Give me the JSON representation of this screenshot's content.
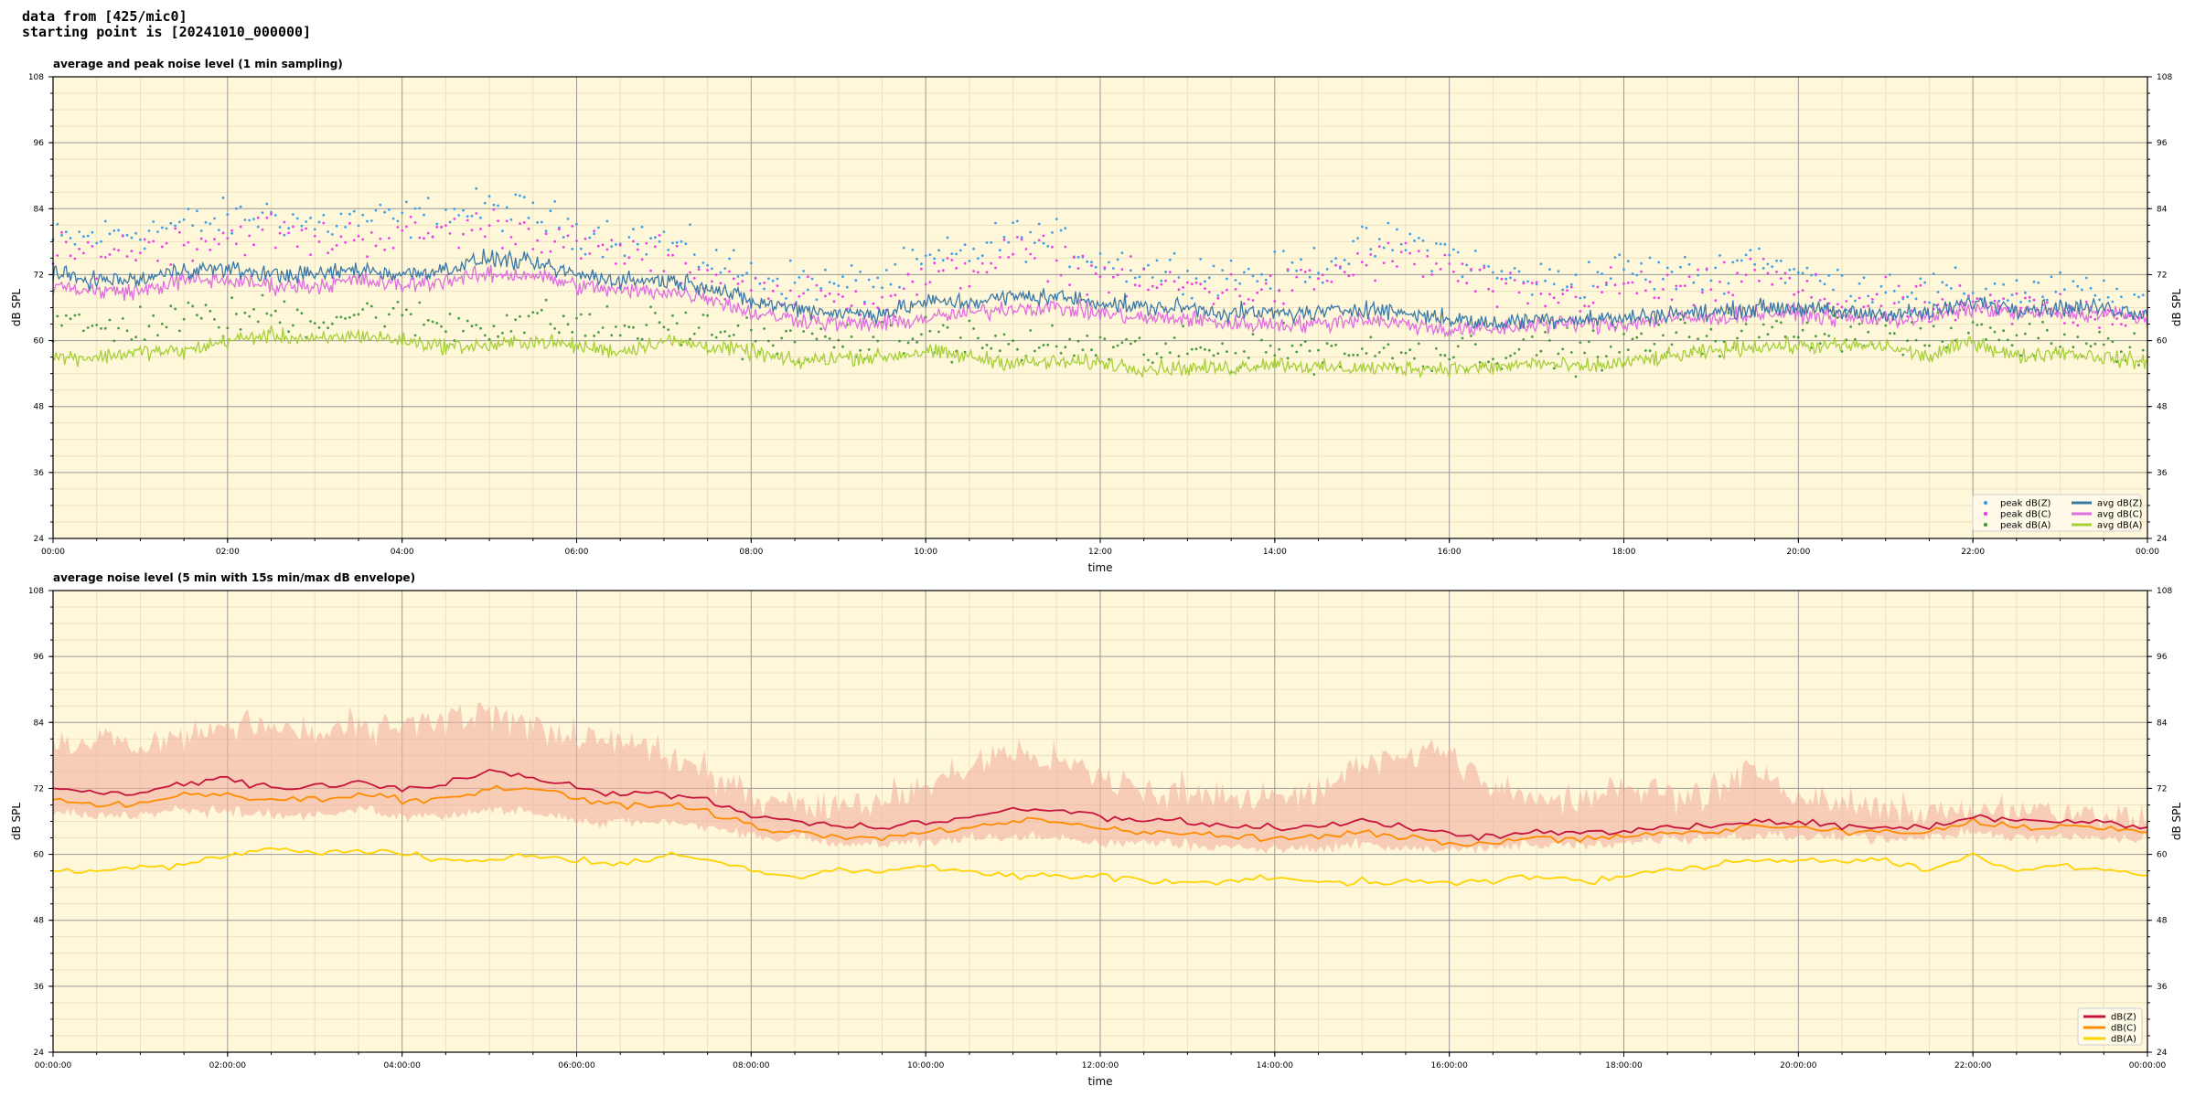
{
  "header": {
    "line1": "data from [425/mic0]",
    "line2": "starting point is [20241010_000000]"
  },
  "colors": {
    "background": "#fff7d9",
    "grid_major": "#9a9a9a",
    "grid_minor": "#ece2c0",
    "peak_z": "#3ea0e6",
    "peak_c": "#ee40e8",
    "peak_a": "#4a9a42",
    "avg_z": "#3a78a8",
    "avg_c": "#e06ee0",
    "avg_a": "#a6cf3a",
    "env_fill": "#f2b0a0",
    "lvl_z": "#c8143c",
    "lvl_c": "#ff8c00",
    "lvl_a": "#ffd200"
  },
  "chart_data": [
    {
      "type": "line",
      "title": "average and peak noise level (1 min sampling)",
      "xlabel": "time",
      "ylabel": "dB SPL",
      "ylim": [
        24,
        108
      ],
      "yticks": [
        "108",
        "96",
        "84",
        "72",
        "60",
        "48",
        "36",
        "24"
      ],
      "xlim": [
        "00:00",
        "24:00"
      ],
      "xticks": [
        "00:00",
        "02:00",
        "04:00",
        "06:00",
        "08:00",
        "10:00",
        "12:00",
        "14:00",
        "16:00",
        "18:00",
        "20:00",
        "22:00",
        "00:00"
      ],
      "grid": true,
      "legend_position": "lower-right",
      "legend": [
        "peak dB(Z)",
        "peak dB(C)",
        "peak dB(A)",
        "avg dB(Z)",
        "avg dB(C)",
        "avg dB(A)"
      ],
      "x_hours": [
        0,
        0.5,
        1,
        1.5,
        2,
        2.5,
        3,
        3.5,
        4,
        4.5,
        5,
        5.5,
        6,
        6.5,
        7,
        7.5,
        8,
        8.5,
        9,
        9.5,
        10,
        10.5,
        11,
        11.5,
        12,
        12.5,
        13,
        13.5,
        14,
        14.5,
        15,
        15.5,
        16,
        16.5,
        17,
        17.5,
        18,
        18.5,
        19,
        19.5,
        20,
        20.5,
        21,
        21.5,
        22,
        22.5,
        23,
        23.5,
        24
      ],
      "series": [
        {
          "name": "avg dB(Z)",
          "style": "line",
          "values": [
            72,
            71,
            71,
            73,
            73,
            72,
            72,
            73,
            72,
            73,
            75,
            74,
            72,
            71,
            71,
            70,
            67,
            66,
            65,
            65,
            67,
            67,
            68,
            68,
            67,
            66,
            66,
            65,
            65,
            65,
            66,
            65,
            64,
            63,
            64,
            64,
            64,
            65,
            65,
            66,
            66,
            65,
            65,
            65,
            67,
            66,
            66,
            66,
            65
          ]
        },
        {
          "name": "avg dB(C)",
          "style": "line",
          "values": [
            70,
            69,
            69,
            71,
            71,
            70,
            70,
            71,
            70,
            71,
            72,
            72,
            70,
            69,
            69,
            68,
            65,
            64,
            63,
            63,
            64,
            65,
            66,
            66,
            65,
            64,
            64,
            63,
            63,
            63,
            64,
            63,
            62,
            62,
            63,
            63,
            63,
            64,
            64,
            65,
            65,
            64,
            64,
            64,
            66,
            65,
            65,
            65,
            64
          ]
        },
        {
          "name": "avg dB(A)",
          "style": "line",
          "values": [
            57,
            57,
            58,
            58,
            60,
            61,
            60,
            61,
            60,
            59,
            59,
            60,
            59,
            58,
            60,
            59,
            58,
            56,
            57,
            57,
            58,
            57,
            56,
            56,
            56,
            55,
            55,
            55,
            56,
            55,
            55,
            55,
            55,
            55,
            56,
            55,
            56,
            57,
            58,
            59,
            59,
            59,
            59,
            57,
            60,
            57,
            58,
            57,
            56
          ]
        },
        {
          "name": "peak dB(Z)",
          "style": "scatter",
          "values": [
            78,
            79,
            80,
            81,
            82,
            83,
            81,
            82,
            82,
            83,
            84,
            83,
            80,
            79,
            78,
            75,
            72,
            71,
            70,
            71,
            74,
            76,
            79,
            78,
            75,
            73,
            73,
            72,
            72,
            74,
            77,
            78,
            76,
            72,
            71,
            71,
            73,
            72,
            72,
            76,
            72,
            70,
            70,
            69,
            69,
            69,
            69,
            68,
            67
          ]
        },
        {
          "name": "peak dB(C)",
          "style": "scatter",
          "values": [
            75,
            76,
            77,
            78,
            79,
            80,
            78,
            79,
            79,
            80,
            81,
            80,
            77,
            76,
            75,
            72,
            69,
            68,
            67,
            68,
            71,
            73,
            76,
            75,
            72,
            70,
            70,
            69,
            69,
            71,
            74,
            75,
            73,
            69,
            68,
            68,
            70,
            69,
            69,
            73,
            69,
            67,
            67,
            66,
            66,
            66,
            66,
            65,
            64
          ]
        },
        {
          "name": "peak dB(A)",
          "style": "scatter",
          "values": [
            63,
            62,
            63,
            64,
            64,
            65,
            64,
            65,
            64,
            63,
            63,
            64,
            63,
            62,
            63,
            62,
            61,
            59,
            60,
            60,
            61,
            60,
            59,
            59,
            59,
            58,
            58,
            58,
            59,
            58,
            58,
            58,
            58,
            58,
            59,
            58,
            59,
            60,
            61,
            62,
            62,
            62,
            62,
            60,
            63,
            60,
            61,
            60,
            59
          ]
        }
      ]
    },
    {
      "type": "area",
      "title": "average noise level (5 min with 15s min/max dB envelope)",
      "xlabel": "time",
      "ylabel": "dB SPL",
      "ylim": [
        24,
        108
      ],
      "yticks": [
        "108",
        "96",
        "84",
        "72",
        "60",
        "48",
        "36",
        "24"
      ],
      "xlim": [
        "00:00:00",
        "24:00:00"
      ],
      "xticks": [
        "00:00:00",
        "02:00:00",
        "04:00:00",
        "06:00:00",
        "08:00:00",
        "10:00:00",
        "12:00:00",
        "14:00:00",
        "16:00:00",
        "18:00:00",
        "20:00:00",
        "22:00:00",
        "00:00:00"
      ],
      "grid": true,
      "legend_position": "lower-right",
      "legend": [
        "dB(Z)",
        "dB(C)",
        "dB(A)"
      ],
      "x_hours": [
        0,
        0.5,
        1,
        1.5,
        2,
        2.5,
        3,
        3.5,
        4,
        4.5,
        5,
        5.5,
        6,
        6.5,
        7,
        7.5,
        8,
        8.5,
        9,
        9.5,
        10,
        10.5,
        11,
        11.5,
        12,
        12.5,
        13,
        13.5,
        14,
        14.5,
        15,
        15.5,
        16,
        16.5,
        17,
        17.5,
        18,
        18.5,
        19,
        19.5,
        20,
        20.5,
        21,
        21.5,
        22,
        22.5,
        23,
        23.5,
        24
      ],
      "envelope_max": [
        80,
        81,
        80,
        82,
        84,
        83,
        82,
        83,
        83,
        84,
        85,
        84,
        81,
        80,
        78,
        75,
        71,
        70,
        69,
        70,
        73,
        76,
        79,
        77,
        74,
        72,
        72,
        70,
        70,
        72,
        76,
        79,
        78,
        72,
        70,
        70,
        73,
        71,
        71,
        76,
        71,
        69,
        69,
        68,
        68,
        68,
        68,
        67,
        66
      ],
      "envelope_min": [
        68,
        67,
        67,
        68,
        68,
        67,
        67,
        68,
        67,
        67,
        68,
        68,
        66,
        66,
        66,
        65,
        63,
        63,
        62,
        62,
        62,
        63,
        63,
        63,
        62,
        62,
        62,
        61,
        61,
        61,
        62,
        61,
        61,
        61,
        62,
        62,
        62,
        63,
        63,
        63,
        63,
        63,
        63,
        63,
        64,
        63,
        63,
        63,
        63
      ],
      "series": [
        {
          "name": "dB(Z)",
          "values": [
            72,
            71,
            71,
            73,
            74,
            72,
            72,
            73,
            72,
            73,
            75,
            74,
            72,
            71,
            71,
            70,
            67,
            66,
            65,
            65,
            66,
            67,
            68,
            68,
            67,
            66,
            66,
            65,
            65,
            65,
            66,
            65,
            64,
            63,
            64,
            64,
            64,
            65,
            65,
            66,
            66,
            65,
            65,
            65,
            67,
            66,
            66,
            66,
            65
          ]
        },
        {
          "name": "dB(C)",
          "values": [
            70,
            69,
            69,
            71,
            71,
            70,
            70,
            71,
            70,
            70,
            72,
            72,
            70,
            69,
            69,
            68,
            65,
            64,
            63,
            63,
            64,
            65,
            66,
            66,
            65,
            64,
            64,
            63,
            63,
            63,
            64,
            63,
            62,
            62,
            63,
            63,
            63,
            64,
            64,
            65,
            65,
            64,
            64,
            64,
            66,
            65,
            65,
            65,
            64
          ]
        },
        {
          "name": "dB(A)",
          "values": [
            57,
            57,
            58,
            58,
            60,
            61,
            60,
            61,
            60,
            59,
            59,
            60,
            59,
            58,
            60,
            59,
            57,
            56,
            57,
            57,
            58,
            57,
            56,
            56,
            56,
            55,
            55,
            55,
            56,
            55,
            55,
            55,
            55,
            55,
            56,
            55,
            56,
            57,
            58,
            59,
            59,
            59,
            59,
            57,
            60,
            57,
            58,
            57,
            56
          ]
        }
      ]
    }
  ]
}
